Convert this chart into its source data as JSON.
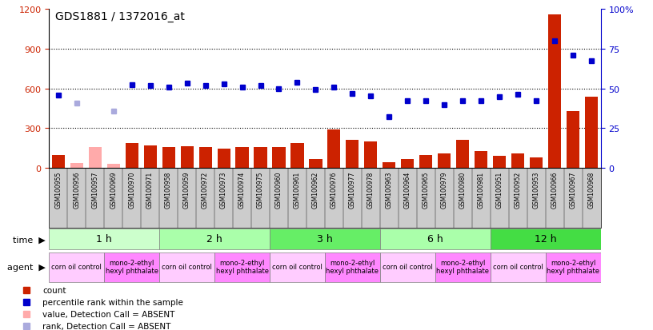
{
  "title": "GDS1881 / 1372016_at",
  "samples": [
    "GSM100955",
    "GSM100956",
    "GSM100957",
    "GSM100969",
    "GSM100970",
    "GSM100971",
    "GSM100958",
    "GSM100959",
    "GSM100972",
    "GSM100973",
    "GSM100974",
    "GSM100975",
    "GSM100960",
    "GSM100961",
    "GSM100962",
    "GSM100976",
    "GSM100977",
    "GSM100978",
    "GSM100963",
    "GSM100964",
    "GSM100965",
    "GSM100979",
    "GSM100980",
    "GSM100981",
    "GSM100951",
    "GSM100952",
    "GSM100953",
    "GSM100966",
    "GSM100967",
    "GSM100968"
  ],
  "counts": [
    100,
    40,
    160,
    30,
    190,
    170,
    155,
    165,
    160,
    145,
    160,
    155,
    155,
    190,
    65,
    290,
    215,
    200,
    45,
    65,
    95,
    110,
    210,
    130,
    90,
    110,
    80,
    1160,
    430,
    540
  ],
  "ranks": [
    550,
    490,
    null,
    430,
    630,
    620,
    610,
    640,
    620,
    635,
    610,
    620,
    600,
    650,
    595,
    610,
    560,
    545,
    390,
    510,
    510,
    480,
    510,
    510,
    540,
    555,
    510,
    960,
    855,
    810
  ],
  "absent_mask": [
    false,
    true,
    true,
    true,
    false,
    false,
    false,
    false,
    false,
    false,
    false,
    false,
    false,
    false,
    false,
    false,
    false,
    false,
    false,
    false,
    false,
    false,
    false,
    false,
    false,
    false,
    false,
    false,
    false,
    false
  ],
  "time_groups": [
    {
      "label": "1 h",
      "start": 0,
      "end": 6,
      "color": "#ccffcc"
    },
    {
      "label": "2 h",
      "start": 6,
      "end": 12,
      "color": "#aaffaa"
    },
    {
      "label": "3 h",
      "start": 12,
      "end": 18,
      "color": "#66ee66"
    },
    {
      "label": "6 h",
      "start": 18,
      "end": 24,
      "color": "#aaffaa"
    },
    {
      "label": "12 h",
      "start": 24,
      "end": 30,
      "color": "#44dd44"
    }
  ],
  "agent_groups": [
    {
      "label": "corn oil control",
      "start": 0,
      "end": 3,
      "color": "#ffccff"
    },
    {
      "label": "mono-2-ethyl\nhexyl phthalate",
      "start": 3,
      "end": 6,
      "color": "#ff88ff"
    },
    {
      "label": "corn oil control",
      "start": 6,
      "end": 9,
      "color": "#ffccff"
    },
    {
      "label": "mono-2-ethyl\nhexyl phthalate",
      "start": 9,
      "end": 12,
      "color": "#ff88ff"
    },
    {
      "label": "corn oil control",
      "start": 12,
      "end": 15,
      "color": "#ffccff"
    },
    {
      "label": "mono-2-ethyl\nhexyl phthalate",
      "start": 15,
      "end": 18,
      "color": "#ff88ff"
    },
    {
      "label": "corn oil control",
      "start": 18,
      "end": 21,
      "color": "#ffccff"
    },
    {
      "label": "mono-2-ethyl\nhexyl phthalate",
      "start": 21,
      "end": 24,
      "color": "#ff88ff"
    },
    {
      "label": "corn oil control",
      "start": 24,
      "end": 27,
      "color": "#ffccff"
    },
    {
      "label": "mono-2-ethyl\nhexyl phthalate",
      "start": 27,
      "end": 30,
      "color": "#ff88ff"
    }
  ],
  "bar_color_present": "#cc2200",
  "bar_color_absent": "#ffaaaa",
  "rank_color_present": "#0000cc",
  "rank_color_absent": "#aaaadd",
  "left_ylim": [
    0,
    1200
  ],
  "right_ylim": [
    0,
    100
  ],
  "left_yticks": [
    0,
    300,
    600,
    900,
    1200
  ],
  "right_yticks": [
    0,
    25,
    50,
    75,
    100
  ],
  "label_box_color": "#cccccc",
  "legend_items": [
    {
      "color": "#cc2200",
      "label": "count"
    },
    {
      "color": "#0000cc",
      "label": "percentile rank within the sample"
    },
    {
      "color": "#ffaaaa",
      "label": "value, Detection Call = ABSENT"
    },
    {
      "color": "#aaaadd",
      "label": "rank, Detection Call = ABSENT"
    }
  ]
}
